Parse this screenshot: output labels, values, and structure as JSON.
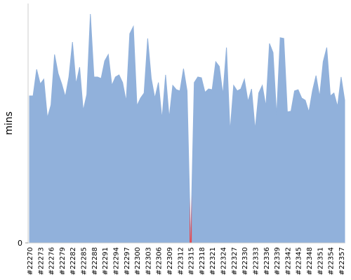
{
  "chart_data": {
    "type": "area",
    "y_label": "mins",
    "categories": [
      "#22270",
      null,
      null,
      "#22273",
      null,
      null,
      "#22276",
      null,
      null,
      "#22279",
      null,
      null,
      "#22282",
      null,
      null,
      "#22285",
      null,
      null,
      "#22288",
      null,
      null,
      "#22291",
      null,
      null,
      "#22294",
      null,
      null,
      "#22297",
      null,
      null,
      "#22300",
      null,
      null,
      "#22303",
      null,
      null,
      "#22306",
      null,
      null,
      "#22309",
      null,
      null,
      "#22312",
      null,
      null,
      "#22315",
      null,
      null,
      "#22318",
      null,
      null,
      "#22321",
      null,
      null,
      "#22324",
      null,
      null,
      "#22327",
      null,
      null,
      "#22330",
      null,
      null,
      "#22333",
      null,
      null,
      "#22336",
      null,
      null,
      "#22339",
      null,
      null,
      "#22342",
      null,
      null,
      "#22345",
      null,
      null,
      "#22348",
      null,
      null,
      "#22351",
      null,
      null,
      "#22354",
      null,
      null,
      "#22357",
      null
    ],
    "series": [
      {
        "color": "#91b1db",
        "values": [
          61.4,
          61.4,
          72.5,
          66.4,
          68.4,
          52.3,
          57.6,
          78.7,
          70.8,
          66.4,
          61.1,
          69.3,
          83.9,
          66.4,
          73.4,
          55.3,
          62.0,
          95.6,
          69.3,
          69.3,
          68.7,
          76.0,
          78.7,
          65.8,
          69.3,
          70.2,
          67.0,
          59.1,
          87.4,
          90.4,
          57.3,
          60.5,
          62.6,
          85.4,
          68.7,
          60.5,
          67.0,
          51.8,
          70.2,
          52.3,
          65.8,
          64.0,
          63.5,
          72.8,
          63.5,
          0,
          67.0,
          69.3,
          69.0,
          62.9,
          64.3,
          64.0,
          75.7,
          73.7,
          62.0,
          81.6,
          46.5,
          65.8,
          63.5,
          64.3,
          68.4,
          59.1,
          64.3,
          47.4,
          62.6,
          65.8,
          57.0,
          83.3,
          79.5,
          53.2,
          85.7,
          85.4,
          54.7,
          55.0,
          63.5,
          64.0,
          60.5,
          59.6,
          54.7,
          63.5,
          69.9,
          61.1,
          75.7,
          81.6,
          61.4,
          62.6,
          57.0,
          69.3,
          59.6
        ]
      }
    ],
    "failed_indices": [
      45
    ],
    "failed_color": "#e8474c",
    "ylim": [
      0,
      100
    ],
    "yticks": [
      0
    ]
  }
}
